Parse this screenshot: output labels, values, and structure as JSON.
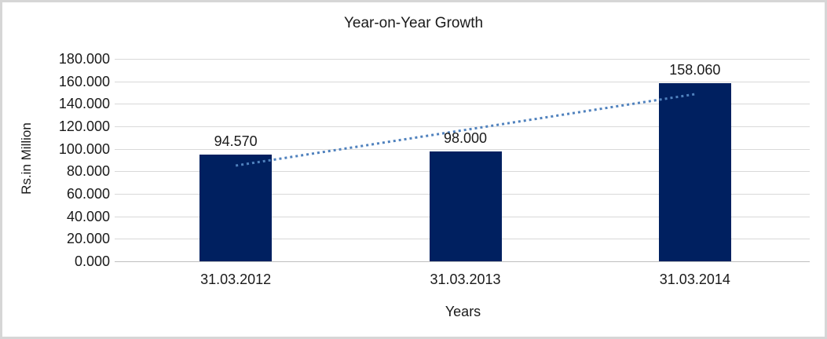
{
  "chart_data": {
    "type": "bar",
    "title": "Year-on-Year Growth",
    "xlabel": "Years",
    "ylabel": "Rs.in Million",
    "categories": [
      "31.03.2012",
      "31.03.2013",
      "31.03.2014"
    ],
    "values": [
      94.57,
      98.0,
      158.06
    ],
    "data_labels": [
      "94.570",
      "98.000",
      "158.060"
    ],
    "y_ticks": [
      "180.000",
      "160.000",
      "140.000",
      "120.000",
      "100.000",
      "80.000",
      "60.000",
      "40.000",
      "20.000",
      "0.000"
    ],
    "ylim": [
      0,
      180
    ],
    "y_tick_step": 20,
    "grid": true,
    "legend": false,
    "bar_color": "#002060",
    "grid_color": "#d9d9d9",
    "axis_color": "#bfbfbf",
    "trendline": {
      "type": "linear",
      "style": "dotted",
      "color": "#4f81bd",
      "start_value": 85.1,
      "end_value": 148.6
    }
  }
}
